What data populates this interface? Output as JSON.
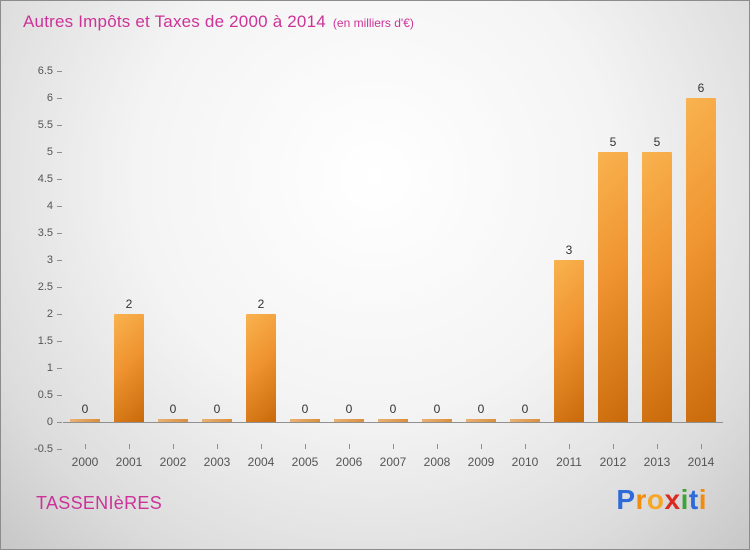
{
  "header": {
    "title": "Autres Impôts et Taxes de 2000 à 2014",
    "subtitle": "(en milliers d'€)"
  },
  "footer": {
    "location": "TASSENIèRES"
  },
  "logo": {
    "text": "Proxiti",
    "letters": [
      {
        "ch": "P",
        "color": "#2f6bd8"
      },
      {
        "ch": "r",
        "color": "#f28c0f"
      },
      {
        "ch": "o",
        "color": "#f6a723"
      },
      {
        "ch": "x",
        "color": "#d92b1f"
      },
      {
        "ch": "i",
        "color": "#3fa33a"
      },
      {
        "ch": "t",
        "color": "#2f6bd8"
      },
      {
        "ch": "i",
        "color": "#f28c0f"
      }
    ]
  },
  "colors": {
    "accent": "#cc3399",
    "bar_light": "#f9b34f",
    "bar_dark": "#c96a0a",
    "axis_text": "#555555",
    "value_text": "#333333",
    "background_edge": "#c7c7c7"
  },
  "chart_data": {
    "type": "bar",
    "title": "Autres Impôts et Taxes de 2000 à 2014",
    "subtitle": "(en milliers d'€)",
    "categories": [
      "2000",
      "2001",
      "2002",
      "2003",
      "2004",
      "2005",
      "2006",
      "2007",
      "2008",
      "2009",
      "2010",
      "2011",
      "2012",
      "2013",
      "2014"
    ],
    "values": [
      0,
      2,
      0,
      0,
      2,
      0,
      0,
      0,
      0,
      0,
      0,
      3,
      5,
      5,
      6
    ],
    "xlabel": "",
    "ylabel": "",
    "ylim": [
      -0.5,
      6.5
    ],
    "ytick_step": 0.5,
    "grid": false,
    "legend": false,
    "value_labels_shown": true
  }
}
